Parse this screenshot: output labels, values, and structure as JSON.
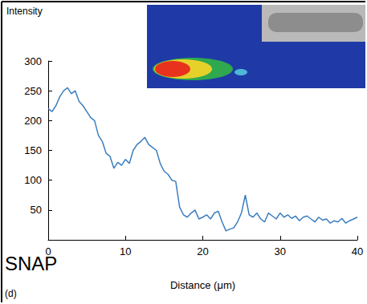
{
  "chart_data": {
    "type": "line",
    "x_label": "Distance (μm)",
    "y_label": "Intensity",
    "annotations": [
      "SNAP",
      "(d)"
    ],
    "color": "#3a7ebf",
    "xlim": [
      0,
      40
    ],
    "xticks": [
      0,
      10,
      20,
      30,
      40
    ],
    "ylim": [
      0,
      300
    ],
    "yticks": [
      50,
      100,
      150,
      200,
      250,
      300
    ],
    "grid": false,
    "x": [
      0,
      0.5,
      1,
      1.5,
      2,
      2.5,
      3,
      3.5,
      4,
      4.5,
      5,
      5.5,
      6,
      6.5,
      7,
      7.5,
      8,
      8.5,
      9,
      9.5,
      10,
      10.5,
      11,
      11.5,
      12,
      12.5,
      13,
      13.5,
      14,
      14.5,
      15,
      15.5,
      16,
      16.5,
      17,
      17.5,
      18,
      18.5,
      19,
      19.5,
      20,
      20.5,
      21,
      21.5,
      22,
      22.5,
      23,
      23.5,
      24,
      24.5,
      25,
      25.5,
      26,
      26.5,
      27,
      27.5,
      28,
      28.5,
      29,
      29.5,
      30,
      30.5,
      31,
      31.5,
      32,
      32.5,
      33,
      33.5,
      34,
      34.5,
      35,
      35.5,
      36,
      36.5,
      37,
      37.5,
      38,
      38.5,
      39,
      39.5,
      40
    ],
    "values": [
      220,
      215,
      225,
      240,
      250,
      255,
      245,
      250,
      232,
      225,
      215,
      205,
      200,
      175,
      165,
      145,
      140,
      120,
      130,
      125,
      135,
      128,
      150,
      160,
      165,
      172,
      160,
      155,
      150,
      128,
      115,
      110,
      100,
      98,
      55,
      42,
      38,
      45,
      50,
      35,
      38,
      42,
      35,
      45,
      48,
      30,
      15,
      18,
      20,
      30,
      45,
      75,
      42,
      38,
      45,
      35,
      30,
      45,
      40,
      35,
      45,
      38,
      42,
      36,
      40,
      32,
      38,
      40,
      35,
      30,
      38,
      33,
      35,
      28,
      32,
      30,
      36,
      28,
      32,
      35,
      38
    ]
  }
}
